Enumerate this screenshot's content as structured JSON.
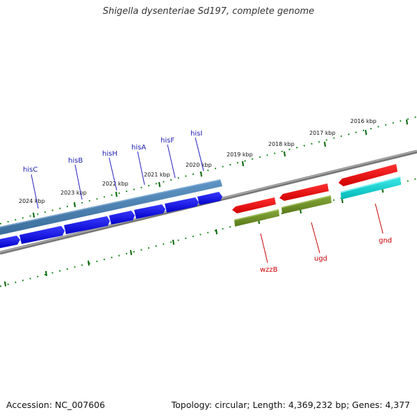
{
  "title": "Shigella dysenteriae Sd197, complete genome",
  "footer": {
    "accession": "Accession: NC_007606",
    "summary": "Topology: circular; Length: 4,369,232 bp; Genes: 4,377"
  },
  "kbp_labels": [
    "2024 kbp",
    "2023 kbp",
    "2022 kbp",
    "2021 kbp",
    "2020 kbp",
    "2019 kbp",
    "2018 kbp",
    "2017 kbp",
    "2016 kbp"
  ],
  "genes": {
    "hisC": "hisC",
    "hisB": "hisB",
    "hisH": "hisH",
    "hisA": "hisA",
    "hisF": "hisF",
    "hisI": "hisI",
    "wzzB": "wzzB",
    "ugd": "ugd",
    "gnd": "gnd"
  },
  "colors": {
    "cds_forward": "#0000ee",
    "operon": "#4a7fb0",
    "cds_reverse": "#ee0000",
    "misc_green": "#6b8e23",
    "misc_cyan": "#00cccc",
    "backbone": "#888888",
    "ticks": "#006400",
    "label_blue": "#1a1ab0",
    "label_red": "#c80000"
  }
}
